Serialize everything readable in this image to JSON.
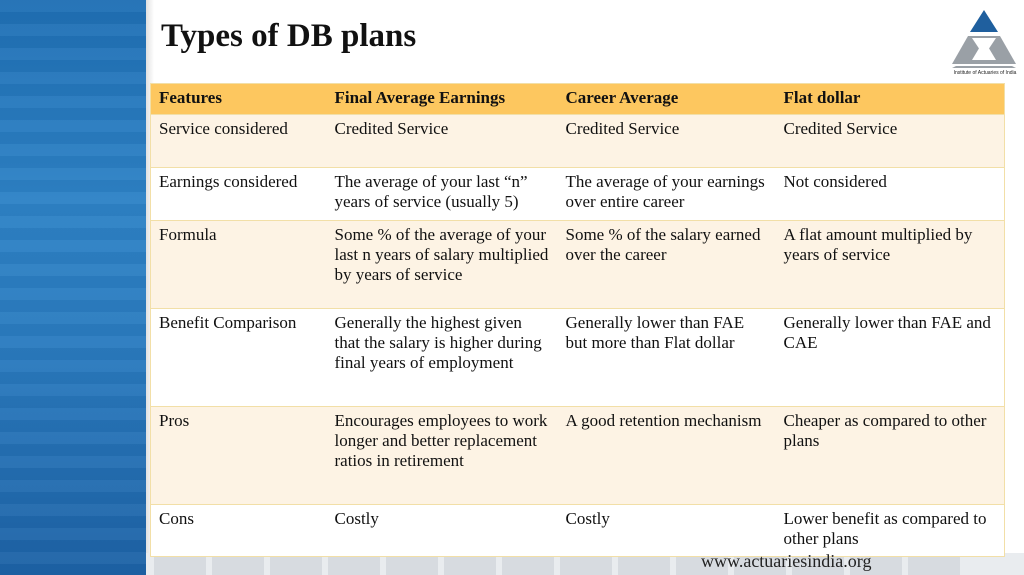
{
  "slide": {
    "title": "Types of DB plans",
    "logo_text": "Institute of Actuaries of India",
    "url": "www.actuariesindia.org"
  },
  "table": {
    "headers": [
      "Features",
      "Final Average Earnings",
      "Career Average",
      "Flat dollar"
    ],
    "rows": [
      [
        "Service considered",
        "Credited Service",
        "Credited Service",
        "Credited Service"
      ],
      [
        "Earnings considered",
        "The average of your last “n” years of service (usually 5)",
        "The average of your earnings over entire career",
        "Not considered"
      ],
      [
        "Formula",
        "Some % of the average of your last n years of salary multiplied by years of service",
        "Some % of the salary earned over the career",
        "A flat amount multiplied by years of service"
      ],
      [
        "Benefit Comparison",
        "Generally the highest given that the salary is higher during final years of employment",
        "Generally lower than FAE but more than Flat dollar",
        "Generally lower than FAE and CAE"
      ],
      [
        "Pros",
        "Encourages employees to work longer and better replacement ratios in retirement",
        "A good retention mechanism",
        "Cheaper as compared to other plans"
      ],
      [
        "Cons",
        "Costly",
        "Costly",
        "Lower benefit as compared to other plans"
      ]
    ]
  },
  "colors": {
    "header_bg": "#fdc75f",
    "odd_row_bg": "#fdf3e4",
    "even_row_bg": "#ffffff",
    "left_band": "#2a7bbf",
    "logo_blue": "#1f5f9e",
    "logo_grey": "#9aa0a6"
  }
}
